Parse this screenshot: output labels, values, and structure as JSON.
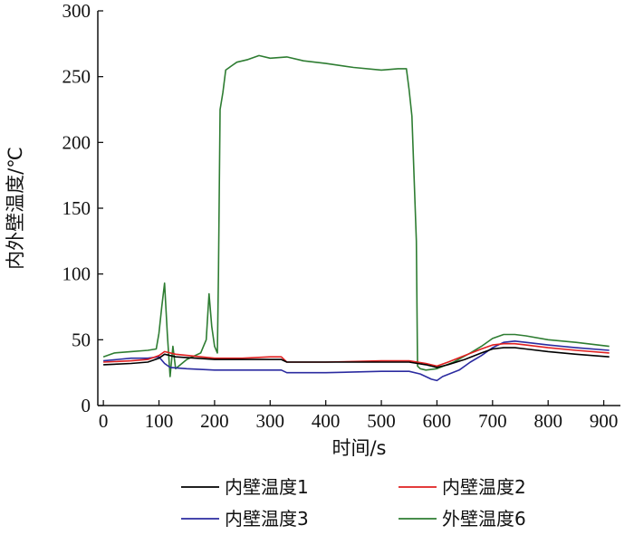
{
  "chart_data": {
    "type": "line",
    "xlabel": "时间/s",
    "ylabel": "内外壁温度/℃",
    "xlim": [
      -10,
      930
    ],
    "ylim": [
      0,
      300
    ],
    "xticks": [
      0,
      100,
      200,
      300,
      400,
      500,
      600,
      700,
      800,
      900
    ],
    "yticks": [
      0,
      50,
      100,
      150,
      200,
      250,
      300
    ],
    "grid": false,
    "legend_position": "bottom",
    "series": [
      {
        "name": "内壁温度1",
        "color": "#000000",
        "points": [
          [
            0,
            31
          ],
          [
            50,
            32
          ],
          [
            80,
            33
          ],
          [
            100,
            36
          ],
          [
            110,
            39
          ],
          [
            130,
            37
          ],
          [
            200,
            35
          ],
          [
            250,
            35
          ],
          [
            300,
            35
          ],
          [
            320,
            35
          ],
          [
            330,
            33
          ],
          [
            400,
            33
          ],
          [
            500,
            33
          ],
          [
            550,
            33
          ],
          [
            580,
            31
          ],
          [
            600,
            29
          ],
          [
            620,
            31
          ],
          [
            650,
            35
          ],
          [
            680,
            40
          ],
          [
            700,
            43
          ],
          [
            720,
            44
          ],
          [
            740,
            44
          ],
          [
            760,
            43
          ],
          [
            800,
            41
          ],
          [
            850,
            39
          ],
          [
            910,
            37
          ]
        ]
      },
      {
        "name": "内壁温度2",
        "color": "#e02020",
        "points": [
          [
            0,
            33
          ],
          [
            50,
            34
          ],
          [
            80,
            35
          ],
          [
            100,
            38
          ],
          [
            110,
            41
          ],
          [
            130,
            39
          ],
          [
            200,
            36
          ],
          [
            250,
            36
          ],
          [
            300,
            37
          ],
          [
            320,
            37
          ],
          [
            330,
            33
          ],
          [
            400,
            33
          ],
          [
            500,
            34
          ],
          [
            550,
            34
          ],
          [
            580,
            32
          ],
          [
            600,
            30
          ],
          [
            620,
            33
          ],
          [
            650,
            38
          ],
          [
            680,
            43
          ],
          [
            700,
            46
          ],
          [
            720,
            47
          ],
          [
            740,
            47
          ],
          [
            760,
            46
          ],
          [
            800,
            44
          ],
          [
            850,
            42
          ],
          [
            910,
            40
          ]
        ]
      },
      {
        "name": "内壁温度3",
        "color": "#2b2ba0",
        "points": [
          [
            0,
            34
          ],
          [
            50,
            36
          ],
          [
            80,
            36
          ],
          [
            100,
            37
          ],
          [
            110,
            32
          ],
          [
            120,
            29
          ],
          [
            150,
            28
          ],
          [
            200,
            27
          ],
          [
            250,
            27
          ],
          [
            300,
            27
          ],
          [
            320,
            27
          ],
          [
            330,
            25
          ],
          [
            400,
            25
          ],
          [
            500,
            26
          ],
          [
            550,
            26
          ],
          [
            570,
            24
          ],
          [
            590,
            20
          ],
          [
            600,
            19
          ],
          [
            610,
            22
          ],
          [
            640,
            27
          ],
          [
            660,
            33
          ],
          [
            680,
            38
          ],
          [
            700,
            44
          ],
          [
            720,
            48
          ],
          [
            740,
            49
          ],
          [
            760,
            48
          ],
          [
            800,
            46
          ],
          [
            850,
            44
          ],
          [
            910,
            42
          ]
        ]
      },
      {
        "name": "外壁温度6",
        "color": "#2e7d32",
        "points": [
          [
            0,
            37
          ],
          [
            20,
            40
          ],
          [
            50,
            41
          ],
          [
            80,
            42
          ],
          [
            95,
            43
          ],
          [
            100,
            55
          ],
          [
            105,
            75
          ],
          [
            110,
            93
          ],
          [
            115,
            55
          ],
          [
            120,
            22
          ],
          [
            125,
            45
          ],
          [
            130,
            28
          ],
          [
            150,
            35
          ],
          [
            175,
            40
          ],
          [
            185,
            50
          ],
          [
            190,
            85
          ],
          [
            195,
            60
          ],
          [
            200,
            45
          ],
          [
            205,
            40
          ],
          [
            207,
            100
          ],
          [
            210,
            225
          ],
          [
            215,
            238
          ],
          [
            220,
            255
          ],
          [
            230,
            258
          ],
          [
            240,
            261
          ],
          [
            260,
            263
          ],
          [
            280,
            266
          ],
          [
            300,
            264
          ],
          [
            330,
            265
          ],
          [
            360,
            262
          ],
          [
            400,
            260
          ],
          [
            450,
            257
          ],
          [
            500,
            255
          ],
          [
            530,
            256
          ],
          [
            545,
            256
          ],
          [
            550,
            240
          ],
          [
            555,
            220
          ],
          [
            560,
            160
          ],
          [
            563,
            125
          ],
          [
            565,
            30
          ],
          [
            570,
            28
          ],
          [
            580,
            27
          ],
          [
            600,
            28
          ],
          [
            630,
            33
          ],
          [
            660,
            40
          ],
          [
            680,
            45
          ],
          [
            700,
            51
          ],
          [
            720,
            54
          ],
          [
            740,
            54
          ],
          [
            760,
            53
          ],
          [
            800,
            50
          ],
          [
            850,
            48
          ],
          [
            910,
            45
          ]
        ]
      }
    ]
  }
}
